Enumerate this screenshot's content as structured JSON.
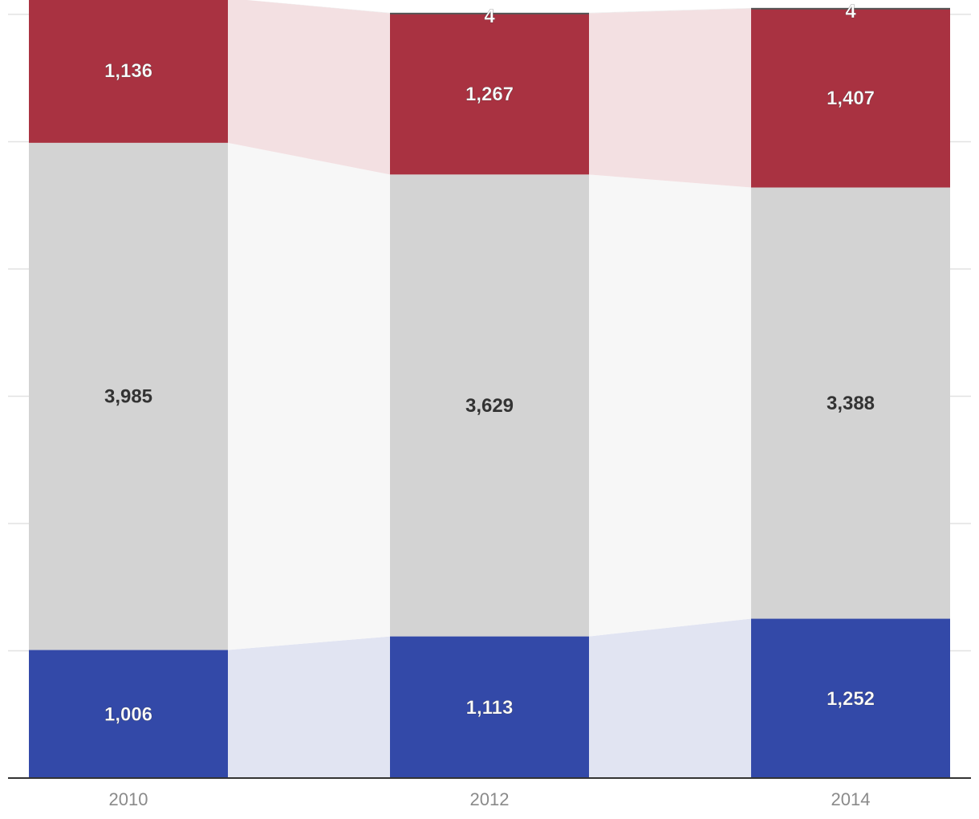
{
  "chart_data": {
    "type": "bar",
    "stacked": true,
    "categories": [
      "2010",
      "2012",
      "2014"
    ],
    "series": [
      {
        "values": [
          1006,
          1113,
          1252
        ],
        "color": "#3349a8",
        "band_color": "#e1e4f2",
        "label_color": "#ffffff"
      },
      {
        "values": [
          3985,
          3629,
          3388
        ],
        "color": "#d3d3d3",
        "band_color": "#f7f7f7",
        "label_color": "#333333"
      },
      {
        "values": [
          1136,
          1267,
          1407
        ],
        "color": "#a93241",
        "band_color": "#f3e0e2",
        "label_color": "#ffffff"
      },
      {
        "values": [
          null,
          4,
          4
        ],
        "color": "#555555",
        "band_color": "#eeeeee",
        "label_color": "#ffffff"
      }
    ],
    "value_labels": {
      "0": [
        "1,006",
        "1,113",
        "1,252"
      ],
      "1": [
        "3,985",
        "3,629",
        "3,388"
      ],
      "2": [
        "1,136",
        "1,267",
        "1,407"
      ],
      "3": [
        "",
        "4",
        "4"
      ]
    },
    "ylim": [
      0,
      6050
    ],
    "grid": true,
    "title": "",
    "xlabel": "",
    "ylabel": "",
    "legend": "none"
  }
}
